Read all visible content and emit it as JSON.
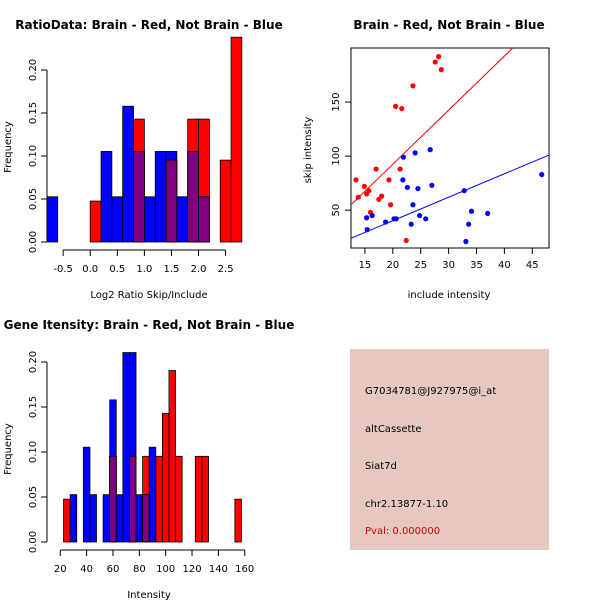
{
  "chart_data": [
    {
      "id": "ratio",
      "type": "bar",
      "title": "RatioData: Brain - Red, Not Brain - Blue",
      "xlabel": "Log2 Ratio Skip/Include",
      "ylabel": "Frequency",
      "xlim": [
        -0.65,
        2.95
      ],
      "ylim": [
        0,
        0.2
      ],
      "xticks": [
        -0.5,
        0,
        0.5,
        1,
        1.5,
        2,
        2.5
      ],
      "xtick_labels": [
        "-0.5",
        "0.0",
        "0.5",
        "1.0",
        "1.5",
        "2.0",
        "2.5"
      ],
      "yticks": [
        0,
        0.05,
        0.1,
        0.15,
        0.2
      ],
      "ytick_labels": [
        "0.00",
        "0.05",
        "0.10",
        "0.15",
        "0.20"
      ],
      "bin_width": 0.2,
      "series": [
        {
          "name": "Brain",
          "color": "#ff0000",
          "bins": [
            [
              0.1,
              0.0476
            ],
            [
              0.9,
              0.1429
            ],
            [
              1.5,
              0.0952
            ],
            [
              1.9,
              0.1429
            ],
            [
              2.1,
              0.1429
            ],
            [
              2.5,
              0.0952
            ],
            [
              2.7,
              0.2381
            ]
          ]
        },
        {
          "name": "Not Brain",
          "color": "#0000ff",
          "bins": [
            [
              -0.7,
              0.0526
            ],
            [
              0.3,
              0.1053
            ],
            [
              0.5,
              0.0526
            ],
            [
              0.7,
              0.1579
            ],
            [
              0.9,
              0.1053
            ],
            [
              1.1,
              0.0526
            ],
            [
              1.3,
              0.1053
            ],
            [
              1.5,
              0.1053
            ],
            [
              1.7,
              0.0526
            ],
            [
              1.9,
              0.1053
            ],
            [
              2.1,
              0.0526
            ]
          ]
        }
      ]
    },
    {
      "id": "scatter",
      "type": "scatter",
      "title": "Brain - Red, Not Brain - Blue",
      "xlabel": "include intensity",
      "ylabel": "skip intensity",
      "xlim": [
        12.5,
        48
      ],
      "ylim": [
        15,
        200
      ],
      "xticks": [
        15,
        20,
        25,
        30,
        35,
        40,
        45
      ],
      "xtick_labels": [
        "15",
        "20",
        "25",
        "30",
        "35",
        "40",
        "45"
      ],
      "yticks": [
        50,
        100,
        150
      ],
      "ytick_labels": [
        "50",
        "100",
        "150"
      ],
      "series": [
        {
          "name": "Brain",
          "color": "#ff0000",
          "points": [
            [
              13.4,
              78
            ],
            [
              13.8,
              62
            ],
            [
              14.9,
              72
            ],
            [
              15.3,
              65
            ],
            [
              15.7,
              68
            ],
            [
              16.0,
              48
            ],
            [
              17.0,
              88
            ],
            [
              17.5,
              60
            ],
            [
              18.0,
              63
            ],
            [
              19.3,
              78
            ],
            [
              19.6,
              55
            ],
            [
              20.5,
              146
            ],
            [
              21.3,
              88
            ],
            [
              21.6,
              144
            ],
            [
              22.4,
              22
            ],
            [
              23.6,
              165
            ],
            [
              27.6,
              187
            ],
            [
              28.2,
              192
            ],
            [
              28.7,
              180
            ]
          ],
          "fit": [
            [
              12.5,
              55
            ],
            [
              41.5,
              200
            ]
          ]
        },
        {
          "name": "Not Brain",
          "color": "#0000ff",
          "points": [
            [
              15.3,
              43
            ],
            [
              15.4,
              32
            ],
            [
              16.3,
              45
            ],
            [
              18.7,
              39
            ],
            [
              20.2,
              42
            ],
            [
              20.6,
              42
            ],
            [
              21.8,
              78
            ],
            [
              21.9,
              99
            ],
            [
              22.6,
              71
            ],
            [
              23.3,
              37
            ],
            [
              23.6,
              55
            ],
            [
              24.0,
              103
            ],
            [
              24.5,
              70
            ],
            [
              24.8,
              45
            ],
            [
              25.9,
              42
            ],
            [
              26.7,
              106
            ],
            [
              27.0,
              73
            ],
            [
              32.8,
              68
            ],
            [
              33.1,
              21
            ],
            [
              33.6,
              37
            ],
            [
              34.1,
              49
            ],
            [
              37.0,
              47
            ],
            [
              46.7,
              83
            ]
          ],
          "fit": [
            [
              12.5,
              24
            ],
            [
              48,
              101
            ]
          ]
        }
      ]
    },
    {
      "id": "intensity",
      "type": "bar",
      "title": "Gene Itensity: Brain - Red, Not Brain - Blue",
      "xlabel": "Intensity",
      "ylabel": "Frequency",
      "xlim": [
        16,
        164
      ],
      "ylim": [
        0,
        0.21
      ],
      "xticks": [
        20,
        40,
        60,
        80,
        100,
        120,
        140,
        160
      ],
      "xtick_labels": [
        "20",
        "40",
        "60",
        "80",
        "100",
        "120",
        "140",
        "160"
      ],
      "yticks": [
        0,
        0.05,
        0.1,
        0.15,
        0.2
      ],
      "ytick_labels": [
        "0.00",
        "0.05",
        "0.10",
        "0.15",
        "0.20"
      ],
      "bin_width": 5,
      "series": [
        {
          "name": "Brain",
          "color": "#ff0000",
          "bins": [
            [
              25,
              0.0476
            ],
            [
              60,
              0.0952
            ],
            [
              75,
              0.0952
            ],
            [
              85,
              0.0952
            ],
            [
              95,
              0.0952
            ],
            [
              100,
              0.1429
            ],
            [
              105,
              0.1905
            ],
            [
              110,
              0.0952
            ],
            [
              125,
              0.0952
            ],
            [
              130,
              0.0952
            ],
            [
              155,
              0.0476
            ]
          ]
        },
        {
          "name": "Not Brain",
          "color": "#0000ff",
          "bins": [
            [
              30,
              0.0526
            ],
            [
              40,
              0.1053
            ],
            [
              45,
              0.0526
            ],
            [
              55,
              0.0526
            ],
            [
              60,
              0.1579
            ],
            [
              65,
              0.0526
            ],
            [
              70,
              0.2105
            ],
            [
              75,
              0.2105
            ],
            [
              80,
              0.0526
            ],
            [
              85,
              0.0526
            ],
            [
              90,
              0.1053
            ]
          ]
        }
      ]
    }
  ],
  "info_box": {
    "probe": "G7034781@J927975@i_at",
    "event_type": "altCassette",
    "gene": "Siat7d",
    "location": "chr2.13877-1.10",
    "pval": "Pval: 0.000000",
    "background_color": "#e6c8c0",
    "pval_color": "#cc0000"
  }
}
